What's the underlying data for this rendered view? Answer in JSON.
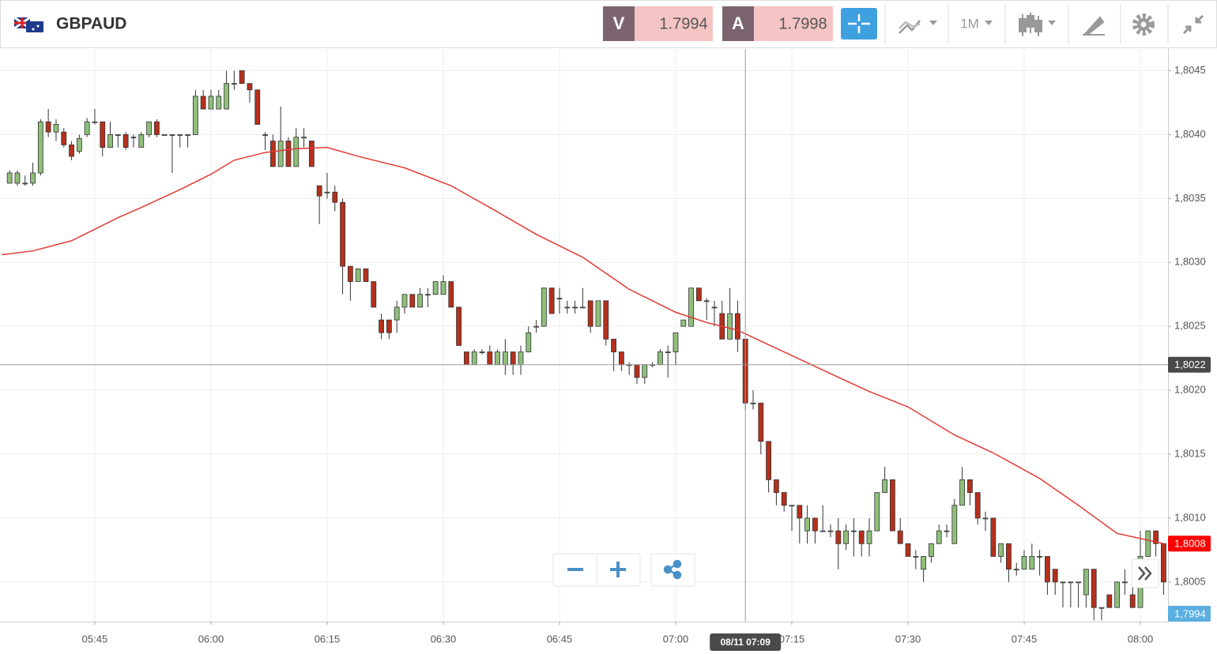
{
  "header": {
    "symbol": "GBPAUD",
    "bid_label": "V",
    "bid": 1.7994,
    "ask_label": "A",
    "ask": 1.7998,
    "timeframe": "1M"
  },
  "chart_data": {
    "type": "candlestick",
    "xlim": [
      332.76,
      483.57
    ],
    "xticks": [
      {
        "value": 345,
        "label": "05:45"
      },
      {
        "value": 360,
        "label": "06:00"
      },
      {
        "value": 375,
        "label": "06:15"
      },
      {
        "value": 390,
        "label": "06:30"
      },
      {
        "value": 405,
        "label": "06:45"
      },
      {
        "value": 420,
        "label": "07:00"
      },
      {
        "value": 435,
        "label": "07:15"
      },
      {
        "value": 450,
        "label": "07:30"
      },
      {
        "value": 465,
        "label": "07:45"
      },
      {
        "value": 480,
        "label": "08:00"
      }
    ],
    "ylim": [
      1.80019,
      1.80467
    ],
    "yticks": [
      {
        "value": 1.8005,
        "label": "1,8005"
      },
      {
        "value": 1.801,
        "label": "1,8010"
      },
      {
        "value": 1.8015,
        "label": "1,8015"
      },
      {
        "value": 1.802,
        "label": "1,8020"
      },
      {
        "value": 1.8025,
        "label": "1,8025"
      },
      {
        "value": 1.803,
        "label": "1,8030"
      },
      {
        "value": 1.8035,
        "label": "1,8035"
      },
      {
        "value": 1.804,
        "label": "1,8040"
      },
      {
        "value": 1.8045,
        "label": "1,8045"
      }
    ],
    "grid": true,
    "up_color": "#8fbf7a",
    "down_color": "#b5301c",
    "candles": {
      "x": [
        334,
        335,
        336,
        337,
        338,
        339,
        340,
        341,
        342,
        343,
        344,
        345,
        346,
        347,
        348,
        349,
        350,
        351,
        352,
        353,
        354,
        355,
        356,
        357,
        358,
        359,
        360,
        361,
        362,
        363,
        364,
        365,
        366,
        367,
        368,
        369,
        370,
        371,
        372,
        373,
        374,
        375,
        376,
        377,
        378,
        379,
        380,
        381,
        382,
        383,
        384,
        385,
        386,
        387,
        388,
        389,
        390,
        391,
        392,
        393,
        394,
        395,
        396,
        397,
        398,
        399,
        400,
        401,
        402,
        403,
        404,
        405,
        406,
        407,
        408,
        409,
        410,
        411,
        412,
        413,
        414,
        415,
        416,
        417,
        418,
        419,
        420,
        421,
        422,
        423,
        424,
        425,
        426,
        427,
        428,
        429,
        430,
        431,
        432,
        433,
        434,
        435,
        436,
        437,
        438,
        439,
        440,
        441,
        442,
        443,
        444,
        445,
        446,
        447,
        448,
        449,
        450,
        451,
        452,
        453,
        454,
        455,
        456,
        457,
        458,
        459,
        460,
        461,
        462,
        463,
        464,
        465,
        466,
        467,
        468,
        469,
        470,
        471,
        472,
        473,
        474,
        475,
        476,
        477,
        478,
        479,
        480,
        481,
        482,
        483
      ],
      "open": [
        1.80362,
        1.80362,
        1.80362,
        1.80362,
        1.8037,
        1.8041,
        1.80402,
        1.80402,
        1.80392,
        1.80387,
        1.804,
        1.8041,
        1.8041,
        1.8039,
        1.804,
        1.804,
        1.80398,
        1.8039,
        1.804,
        1.8041,
        1.804,
        1.804,
        1.804,
        1.804,
        1.804,
        1.8043,
        1.8042,
        1.8042,
        1.8042,
        1.8044,
        1.8045,
        1.8044,
        1.80435,
        1.804,
        1.80395,
        1.80375,
        1.80395,
        1.80375,
        1.80398,
        1.80395,
        1.8036,
        1.80355,
        1.80355,
        1.80347,
        1.80297,
        1.80285,
        1.80295,
        1.80285,
        1.80255,
        1.80255,
        1.80255,
        1.80265,
        1.80275,
        1.80265,
        1.80275,
        1.80275,
        1.80275,
        1.80285,
        1.80265,
        1.8023,
        1.8022,
        1.8023,
        1.8023,
        1.8022,
        1.8022,
        1.8023,
        1.8022,
        1.8023,
        1.8025,
        1.8025,
        1.8028,
        1.80272,
        1.80265,
        1.80265,
        1.80265,
        1.8027,
        1.8025,
        1.8027,
        1.8024,
        1.8023,
        1.8022,
        1.8022,
        1.8021,
        1.8022,
        1.8022,
        1.8023,
        1.8023,
        1.8025,
        1.8025,
        1.8028,
        1.8027,
        1.80265,
        1.8026,
        1.8024,
        1.8026,
        1.8024,
        1.8019,
        1.8019,
        1.8016,
        1.8013,
        1.8012,
        1.8011,
        1.8011,
        1.8009,
        1.801,
        1.8009,
        1.8009,
        1.8009,
        1.8008,
        1.8009,
        1.8009,
        1.8008,
        1.8009,
        1.8012,
        1.8013,
        1.8009,
        1.8008,
        1.8007,
        1.8006,
        1.8007,
        1.8008,
        1.8009,
        1.8008,
        1.8011,
        1.8013,
        1.8012,
        1.801,
        1.801,
        1.8007,
        1.8008,
        1.8006,
        1.8006,
        1.8006,
        1.8007,
        1.8007,
        1.8006,
        1.8005,
        1.8005,
        1.8005,
        1.8004,
        1.8006,
        1.8003,
        1.8004,
        1.8003,
        1.8005,
        1.8004,
        1.8003,
        1.8007,
        1.8009,
        1.8008
      ],
      "high": [
        1.80372,
        1.80372,
        1.80368,
        1.80378,
        1.80412,
        1.8042,
        1.80412,
        1.80405,
        1.80395,
        1.804,
        1.80413,
        1.8042,
        1.8041,
        1.8041,
        1.804,
        1.80402,
        1.804,
        1.80402,
        1.8041,
        1.80412,
        1.804,
        1.804,
        1.804,
        1.804,
        1.80435,
        1.80435,
        1.80435,
        1.80435,
        1.8045,
        1.8045,
        1.8045,
        1.8044,
        1.80435,
        1.80402,
        1.804,
        1.80422,
        1.80398,
        1.80405,
        1.80405,
        1.80395,
        1.8036,
        1.8037,
        1.8036,
        1.8035,
        1.80297,
        1.80295,
        1.80295,
        1.80285,
        1.8026,
        1.80255,
        1.8027,
        1.80275,
        1.80275,
        1.8028,
        1.8028,
        1.80285,
        1.8029,
        1.80285,
        1.80265,
        1.8023,
        1.80232,
        1.80232,
        1.80235,
        1.80232,
        1.8024,
        1.8023,
        1.80235,
        1.8025,
        1.80255,
        1.8028,
        1.8028,
        1.8028,
        1.8027,
        1.8027,
        1.8028,
        1.8027,
        1.8027,
        1.8027,
        1.8024,
        1.8023,
        1.80222,
        1.8022,
        1.8022,
        1.80222,
        1.80232,
        1.80235,
        1.80245,
        1.80255,
        1.8028,
        1.8028,
        1.80272,
        1.8027,
        1.8027,
        1.8028,
        1.8027,
        1.8024,
        1.802,
        1.8019,
        1.8016,
        1.8013,
        1.8012,
        1.8011,
        1.8011,
        1.8011,
        1.801,
        1.8011,
        1.80095,
        1.801,
        1.80095,
        1.801,
        1.8009,
        1.801,
        1.8012,
        1.8014,
        1.8013,
        1.801,
        1.8008,
        1.80075,
        1.8007,
        1.8008,
        1.80095,
        1.80095,
        1.80115,
        1.8014,
        1.8013,
        1.8012,
        1.80105,
        1.801,
        1.8008,
        1.8008,
        1.80065,
        1.80075,
        1.8008,
        1.80075,
        1.8007,
        1.8006,
        1.8005,
        1.8005,
        1.8005,
        1.8006,
        1.8006,
        1.8003,
        1.8004,
        1.8005,
        1.8006,
        1.8006,
        1.8009,
        1.8009,
        1.8009,
        1.8008
      ],
      "low": [
        1.80362,
        1.8036,
        1.8036,
        1.8036,
        1.80368,
        1.80398,
        1.80395,
        1.8039,
        1.8038,
        1.80385,
        1.80398,
        1.80408,
        1.80383,
        1.8039,
        1.8039,
        1.80388,
        1.8039,
        1.8039,
        1.80398,
        1.80398,
        1.804,
        1.8037,
        1.8039,
        1.8039,
        1.804,
        1.8042,
        1.8042,
        1.8042,
        1.8042,
        1.80435,
        1.8044,
        1.80425,
        1.80408,
        1.80388,
        1.80375,
        1.80375,
        1.80375,
        1.80375,
        1.8039,
        1.80375,
        1.8033,
        1.8035,
        1.8034,
        1.80275,
        1.8027,
        1.80285,
        1.80285,
        1.80265,
        1.8024,
        1.8024,
        1.80245,
        1.8026,
        1.80265,
        1.80265,
        1.80265,
        1.80275,
        1.80275,
        1.80265,
        1.80235,
        1.8022,
        1.8022,
        1.80228,
        1.8022,
        1.8022,
        1.80212,
        1.80212,
        1.80212,
        1.8023,
        1.80245,
        1.8025,
        1.8026,
        1.8026,
        1.8026,
        1.8026,
        1.80265,
        1.80245,
        1.8025,
        1.80235,
        1.80215,
        1.80215,
        1.80212,
        1.80205,
        1.80205,
        1.80218,
        1.8022,
        1.8021,
        1.8022,
        1.8025,
        1.8025,
        1.8027,
        1.80255,
        1.8025,
        1.8024,
        1.8024,
        1.8023,
        1.80185,
        1.80185,
        1.8015,
        1.8012,
        1.8011,
        1.80105,
        1.8009,
        1.8008,
        1.8008,
        1.8008,
        1.8009,
        1.80085,
        1.8006,
        1.80075,
        1.8007,
        1.8007,
        1.8007,
        1.8009,
        1.8012,
        1.8009,
        1.8008,
        1.8007,
        1.8006,
        1.8005,
        1.80065,
        1.8008,
        1.80085,
        1.8008,
        1.8011,
        1.8011,
        1.80095,
        1.8009,
        1.8007,
        1.80065,
        1.8005,
        1.80055,
        1.8006,
        1.8006,
        1.80055,
        1.8004,
        1.8004,
        1.8003,
        1.8003,
        1.8003,
        1.8003,
        1.8002,
        1.8002,
        1.8003,
        1.8003,
        1.8004,
        1.8003,
        1.8003,
        1.8007,
        1.8007,
        1.8004
      ],
      "close": [
        1.8037,
        1.8037,
        1.80362,
        1.8037,
        1.8041,
        1.80402,
        1.80408,
        1.80392,
        1.80383,
        1.80397,
        1.8041,
        1.8041,
        1.8039,
        1.804,
        1.804,
        1.8039,
        1.80398,
        1.804,
        1.8041,
        1.804,
        1.804,
        1.804,
        1.804,
        1.804,
        1.8043,
        1.8042,
        1.8043,
        1.8043,
        1.8044,
        1.8044,
        1.8044,
        1.80435,
        1.80408,
        1.804,
        1.80375,
        1.80395,
        1.80375,
        1.80398,
        1.80398,
        1.80375,
        1.80352,
        1.80355,
        1.80347,
        1.80297,
        1.80285,
        1.80295,
        1.80285,
        1.80265,
        1.80245,
        1.80245,
        1.80265,
        1.80275,
        1.80265,
        1.80275,
        1.80275,
        1.80285,
        1.80285,
        1.80265,
        1.80235,
        1.8022,
        1.8023,
        1.8023,
        1.8022,
        1.8023,
        1.8023,
        1.8022,
        1.8023,
        1.80245,
        1.8025,
        1.8028,
        1.8026,
        1.80272,
        1.80265,
        1.80265,
        1.80265,
        1.8025,
        1.8027,
        1.8024,
        1.8023,
        1.8022,
        1.8022,
        1.8021,
        1.8022,
        1.8022,
        1.8023,
        1.8023,
        1.80245,
        1.80255,
        1.8028,
        1.8027,
        1.8027,
        1.80265,
        1.8024,
        1.8026,
        1.8024,
        1.8019,
        1.8019,
        1.8016,
        1.8013,
        1.8012,
        1.8011,
        1.8011,
        1.801,
        1.801,
        1.8009,
        1.8009,
        1.8009,
        1.8008,
        1.8009,
        1.8009,
        1.8008,
        1.8009,
        1.8012,
        1.8013,
        1.8009,
        1.8008,
        1.8007,
        1.8007,
        1.8007,
        1.8008,
        1.8009,
        1.8009,
        1.8011,
        1.8013,
        1.8012,
        1.801,
        1.801,
        1.8007,
        1.8008,
        1.8006,
        1.8006,
        1.8007,
        1.8007,
        1.8007,
        1.8005,
        1.8005,
        1.8005,
        1.8005,
        1.8005,
        1.8006,
        1.8003,
        1.8003,
        1.8003,
        1.8005,
        1.8005,
        1.8003,
        1.8007,
        1.8009,
        1.8008,
        1.8005
      ]
    },
    "ma": {
      "color": "#e53935",
      "x": [
        333,
        337,
        342,
        345,
        348,
        351,
        356,
        360,
        363,
        367,
        371,
        375,
        379,
        385,
        391,
        396,
        402,
        408,
        414,
        420,
        424,
        428,
        434,
        440,
        445,
        450,
        456,
        461,
        467,
        472,
        477,
        483
      ],
      "values": [
        1.80306,
        1.80309,
        1.80317,
        1.80326,
        1.80335,
        1.80343,
        1.80357,
        1.80369,
        1.8038,
        1.80386,
        1.80389,
        1.8039,
        1.80383,
        1.80374,
        1.8036,
        1.80343,
        1.80322,
        1.80304,
        1.80279,
        1.80261,
        1.80253,
        1.80247,
        1.8023,
        1.80213,
        1.80199,
        1.80187,
        1.80165,
        1.80151,
        1.80131,
        1.8011,
        1.80088,
        1.8008
      ]
    },
    "crosshair": {
      "x": 429,
      "y": 1.8022,
      "x_label": "08/11 07:09",
      "y_label": "1,8022"
    },
    "price_markers": [
      {
        "value": 1.8008,
        "label": "1,8008",
        "color": "#ff0000"
      },
      {
        "value": 1.7994,
        "label": "1,7994",
        "color": "#5aaee0"
      }
    ]
  }
}
